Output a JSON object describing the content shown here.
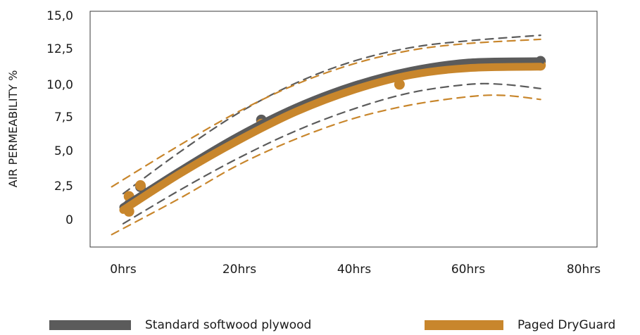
{
  "chart_data": {
    "type": "line",
    "title": "",
    "xlabel": "",
    "ylabel": "AIR PERMEABILITY %",
    "x_ticks": [
      "0hrs",
      "20hrs",
      "40hrs",
      "60hrs",
      "80hrs"
    ],
    "y_ticks": [
      "15,0",
      "12,5",
      "10,0",
      "7,5",
      "5,0",
      "2,5",
      "0"
    ],
    "xlim": [
      -6,
      82
    ],
    "ylim": [
      -2,
      15
    ],
    "grid": false,
    "legend_position": "bottom",
    "series": [
      {
        "name": "Standard softwood plywood",
        "color": "#5b5b5b",
        "points": [
          {
            "x": 1,
            "y": 1.1
          },
          {
            "x": 3,
            "y": 2.4
          },
          {
            "x": 24,
            "y": 7.3
          },
          {
            "x": 72.5,
            "y": 11.6
          }
        ],
        "fit": [
          {
            "x": 0,
            "y": 0.9
          },
          {
            "x": 10,
            "y": 3.6
          },
          {
            "x": 20,
            "y": 6.1
          },
          {
            "x": 30,
            "y": 8.2
          },
          {
            "x": 40,
            "y": 9.8
          },
          {
            "x": 50,
            "y": 10.9
          },
          {
            "x": 60,
            "y": 11.5
          },
          {
            "x": 72.5,
            "y": 11.6
          }
        ],
        "upper_band": [
          {
            "x": 0,
            "y": 1.9
          },
          {
            "x": 10,
            "y": 5.0
          },
          {
            "x": 20,
            "y": 7.8
          },
          {
            "x": 30,
            "y": 10.0
          },
          {
            "x": 40,
            "y": 11.6
          },
          {
            "x": 50,
            "y": 12.6
          },
          {
            "x": 60,
            "y": 13.1
          },
          {
            "x": 72.5,
            "y": 13.5
          }
        ],
        "lower_band": [
          {
            "x": 0,
            "y": -0.3
          },
          {
            "x": 10,
            "y": 2.2
          },
          {
            "x": 20,
            "y": 4.5
          },
          {
            "x": 30,
            "y": 6.5
          },
          {
            "x": 40,
            "y": 8.1
          },
          {
            "x": 50,
            "y": 9.3
          },
          {
            "x": 60,
            "y": 9.9
          },
          {
            "x": 66,
            "y": 9.9
          },
          {
            "x": 72.5,
            "y": 9.6
          }
        ]
      },
      {
        "name": "Paged DryGuard",
        "color": "#c8862c",
        "points": [
          {
            "x": 1,
            "y": 1.7
          },
          {
            "x": 1,
            "y": 0.6
          },
          {
            "x": 3,
            "y": 2.5
          },
          {
            "x": 24,
            "y": 7.0
          },
          {
            "x": 48,
            "y": 9.9
          },
          {
            "x": 72.5,
            "y": 11.3
          }
        ],
        "fit": [
          {
            "x": 0,
            "y": 0.7
          },
          {
            "x": 10,
            "y": 3.4
          },
          {
            "x": 20,
            "y": 5.8
          },
          {
            "x": 30,
            "y": 7.9
          },
          {
            "x": 40,
            "y": 9.5
          },
          {
            "x": 50,
            "y": 10.6
          },
          {
            "x": 60,
            "y": 11.1
          },
          {
            "x": 72.5,
            "y": 11.2
          }
        ],
        "upper_band": [
          {
            "x": -2,
            "y": 2.4
          },
          {
            "x": 10,
            "y": 5.5
          },
          {
            "x": 20,
            "y": 7.9
          },
          {
            "x": 30,
            "y": 9.9
          },
          {
            "x": 40,
            "y": 11.4
          },
          {
            "x": 50,
            "y": 12.4
          },
          {
            "x": 60,
            "y": 12.9
          },
          {
            "x": 72.5,
            "y": 13.2
          }
        ],
        "lower_band": [
          {
            "x": -2,
            "y": -1.1
          },
          {
            "x": 10,
            "y": 1.6
          },
          {
            "x": 20,
            "y": 4.0
          },
          {
            "x": 30,
            "y": 5.9
          },
          {
            "x": 40,
            "y": 7.4
          },
          {
            "x": 50,
            "y": 8.4
          },
          {
            "x": 60,
            "y": 9.0
          },
          {
            "x": 66,
            "y": 9.1
          },
          {
            "x": 72.5,
            "y": 8.8
          }
        ]
      }
    ]
  }
}
